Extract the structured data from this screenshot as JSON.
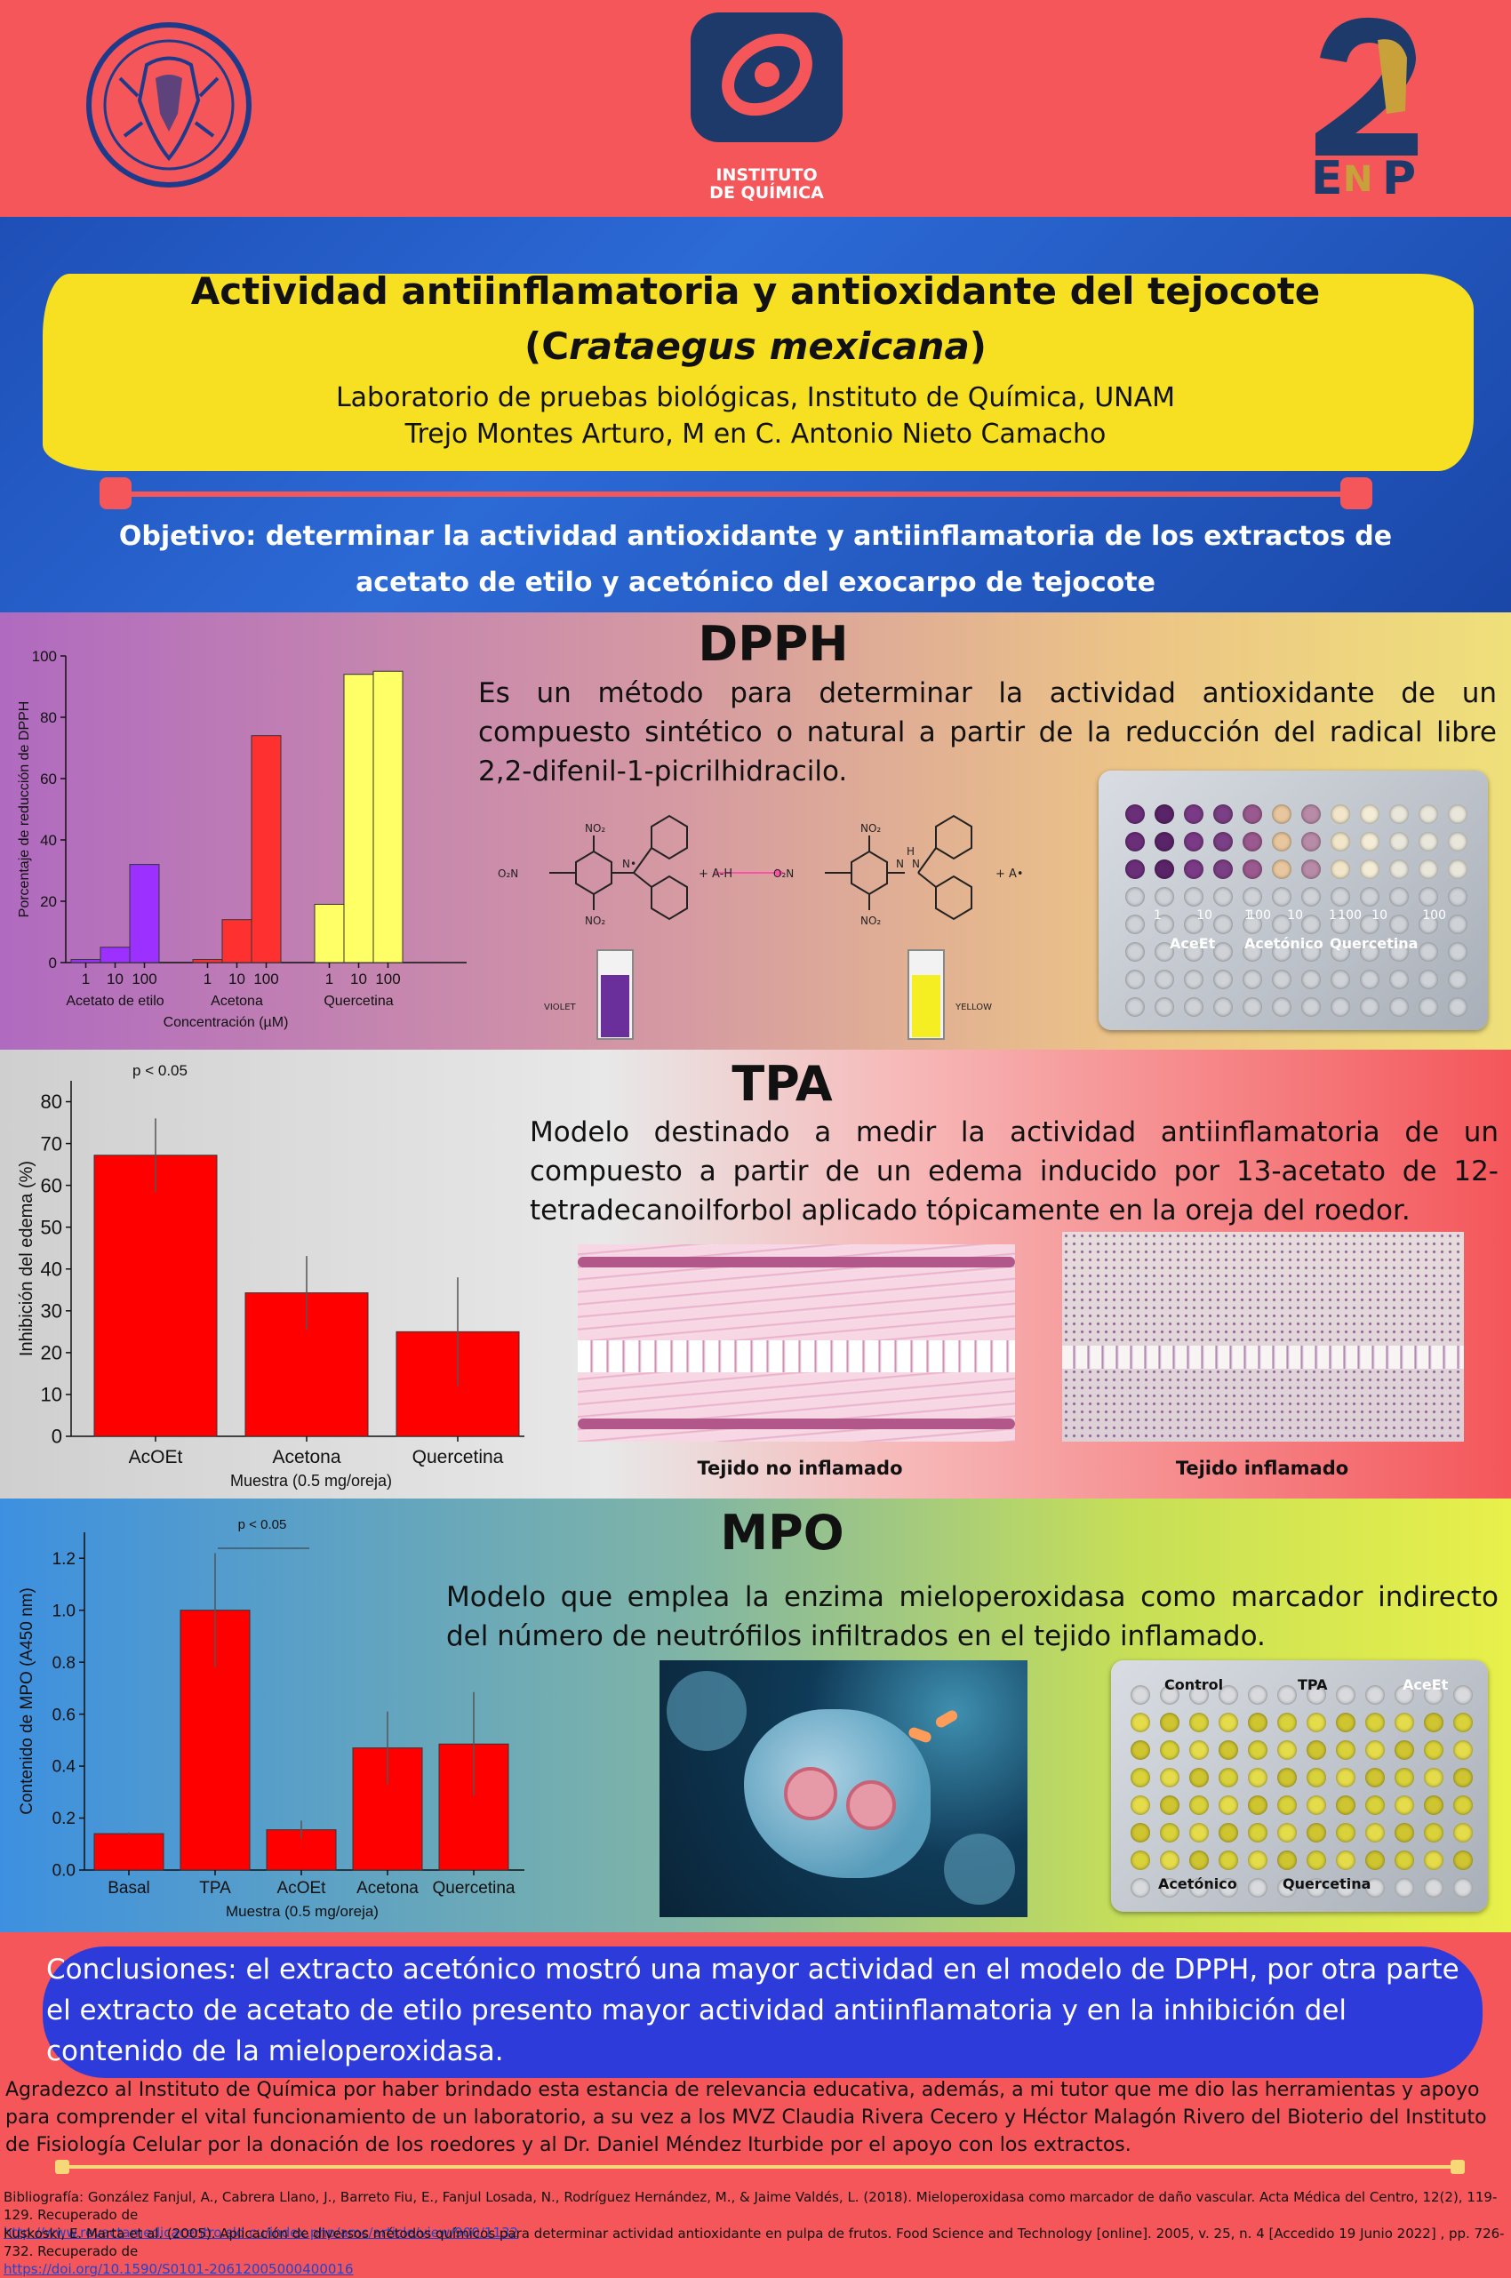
{
  "header": {
    "logos": [
      "unam-seal",
      "instituto-de-quimica",
      "2-enp"
    ],
    "instituto_line1": "INSTITUTO",
    "instituto_line2": "DE QUÍMICA",
    "enp_text": "ENP"
  },
  "title": {
    "line1": "Actividad antiinflamatoria y antioxidante del tejocote",
    "line2_open": "(C",
    "line2_italic": "rataegus mexicana",
    "line2_close": ")",
    "lab": "Laboratorio de pruebas biológicas, Instituto de Química, UNAM",
    "authors": "Trejo Montes Arturo, M en C. Antonio Nieto Camacho"
  },
  "objective": "Objetivo: determinar la actividad  antioxidante y antiinflamatoria de los extractos de acetato de etilo y acetónico del exocarpo de tejocote",
  "dpph": {
    "title": "DPPH",
    "description": "Es un método para determinar la actividad antioxidante de un compuesto sintético o natural a partir de la reducción del radical libre 2,2-difenil-1-picrilhidracilo.",
    "reaction_reagent": "+ A-H",
    "reaction_product": "+ A•",
    "violet_label": "VIOLET",
    "yellow_label": "YELLOW",
    "plate_labels": [
      "AceEt",
      "Acetónico",
      "Quercetina"
    ],
    "plate_conc": [
      "1",
      "10",
      "100"
    ]
  },
  "tpa": {
    "title": "TPA",
    "description": "Modelo destinado a medir la actividad antiinflamatoria de un compuesto a partir de un edema inducido por 13-acetato de 12-tetradecanoilforbol aplicado tópicamente en la oreja del roedor.",
    "img1_caption": "Tejido no inflamado",
    "img2_caption": "Tejido inflamado"
  },
  "mpo": {
    "title": "MPO",
    "description": "Modelo que emplea la enzima mieloperoxidasa como marcador indirecto del número de neutrófilos infiltrados en el tejido inflamado.",
    "plate_labels_top": [
      "Control",
      "TPA",
      "AceEt"
    ],
    "plate_labels_bottom": [
      "Acetónico",
      "Quercetina"
    ]
  },
  "conclusion": "Conclusiones:  el extracto acetónico mostró una mayor actividad en el modelo de DPPH, por otra parte el extracto de acetato de etilo presento mayor actividad antiinflamatoria y en la inhibición del contenido de la mieloperoxidasa.",
  "acknowledgement": "Agradezco al Instituto de Química por haber brindado esta estancia de relevancia educativa, además, a mi tutor que me dio las herramientas y apoyo para comprender el vital funcionamiento de un laboratorio, a su vez a los MVZ Claudia Rivera Cecero y  Héctor Malagón Rivero del Bioterio  del Instituto de Fisiología Celular por la donación de los roedores y al Dr. Daniel Méndez Iturbide por el apoyo con los extractos.",
  "bibliography": {
    "ref1": "Bibliografía: González Fanjul, A., Cabrera Llano, J., Barreto Fiu, E., Fanjul Losada, N., Rodríguez Hernández, M., & Jaime Valdés, L. (2018). Mieloperoxidasa como marcador de daño vascular. Acta Médica del Centro, 12(2), 119-129. Recuperado de",
    "ref1_link": "http://www.revactamedicacentro.sld.cu/index.php/amc/article/view/900/1132",
    "ref2": "Kuskoski, E. Marta et al. (2005). Aplicación de diversos métodos químicos para determinar actividad antioxidante en pulpa de frutos. Food Science and Technology [online]. 2005, v. 25, n. 4 [Accedido 19 Junio 2022] , pp. 726-732. Recuperado de",
    "ref2_link": "https://doi.org/10.1590/S0101-20612005000400016"
  },
  "chart_data": [
    {
      "type": "bar",
      "id": "dpph",
      "groups": [
        "Acetato de etilo",
        "Acetona",
        "Quercetina"
      ],
      "subcategories": [
        "1",
        "10",
        "100"
      ],
      "series": [
        {
          "group": "Acetato de etilo",
          "values": [
            1,
            5,
            32
          ],
          "color": "#9b30ff"
        },
        {
          "group": "Acetona",
          "values": [
            1,
            14,
            74
          ],
          "color": "#ff3030"
        },
        {
          "group": "Quercetina",
          "values": [
            19,
            94,
            95
          ],
          "color": "#ffff66"
        }
      ],
      "ylabel": "Porcentaje de reducción de DPPH",
      "xlabel": "Concentración (µM)",
      "ylim": [
        0,
        100
      ],
      "yticks": [
        "0",
        "20",
        "40",
        "60",
        "80",
        "100"
      ]
    },
    {
      "type": "bar",
      "id": "tpa",
      "categories": [
        "AcOEt",
        "Acetona",
        "Quercetina"
      ],
      "values": [
        67.2,
        34.3,
        25.0
      ],
      "errors": [
        8.8,
        8.8,
        13.0
      ],
      "color": "#ff0000",
      "ylabel": "Inhibición del edema (%)",
      "xlabel": "Muestra (0.5 mg/oreja)",
      "ylim": [
        0,
        85
      ],
      "yticks": [
        "0",
        "10",
        "20",
        "30",
        "40",
        "50",
        "60",
        "70",
        "80"
      ],
      "annotation": "p < 0.05"
    },
    {
      "type": "bar",
      "id": "mpo",
      "categories": [
        "Basal",
        "TPA",
        "AcOEt",
        "Acetona",
        "Quercetina"
      ],
      "values": [
        0.14,
        1.0,
        0.155,
        0.47,
        0.485
      ],
      "errors": [
        0.005,
        0.22,
        0.035,
        0.14,
        0.2
      ],
      "color": "#ff0000",
      "ylabel": "Contenido de MPO (A450 nm)",
      "xlabel": "Muestra (0.5 mg/oreja)",
      "ylim": [
        0,
        1.3
      ],
      "yticks": [
        "0.0",
        "0.2",
        "0.4",
        "0.6",
        "0.8",
        "1.0",
        "1.2"
      ],
      "annotation": "p < 0.05"
    }
  ]
}
